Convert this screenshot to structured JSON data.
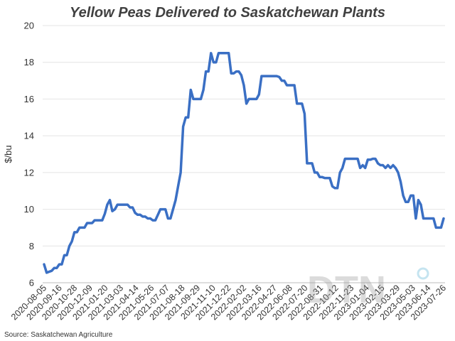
{
  "chart_data": {
    "type": "line",
    "title": "Yellow Peas Delivered to Saskatchewan Plants",
    "ylabel": "$/bu",
    "xlabel": "",
    "ylim": [
      6,
      20
    ],
    "yticks": [
      6,
      8,
      10,
      12,
      14,
      16,
      18,
      20
    ],
    "x_tick_labels": [
      "2020-08-05",
      "2020-09-16",
      "2020-10-28",
      "2020-12-09",
      "2021-01-20",
      "2021-03-03",
      "2021-04-14",
      "2021-05-26",
      "2021-07-07",
      "2021-08-18",
      "2021-09-29",
      "2021-11-10",
      "2021-12-22",
      "2022-02-02",
      "2022-03-16",
      "2022-04-27",
      "2022-06-08",
      "2022-07-20",
      "2022-08-31",
      "2022-10-12",
      "2022-11-23",
      "2023-01-04",
      "2023-02-15",
      "2023-03-29",
      "2023-05-03",
      "2023-06-14",
      "2023-07-26"
    ],
    "grid": "horizontal",
    "color": "#3a6fc4",
    "series": [
      {
        "values": [
          7.0,
          6.55,
          6.6,
          6.65,
          6.8,
          6.8,
          7.0,
          7.0,
          7.5,
          7.5,
          8.0,
          8.25,
          8.75,
          8.75,
          9.0,
          9.0,
          9.0,
          9.25,
          9.25,
          9.25,
          9.4,
          9.4,
          9.4,
          9.4,
          9.75,
          10.25,
          10.5,
          9.9,
          10.0,
          10.25,
          10.25,
          10.25,
          10.25,
          10.25,
          10.1,
          10.1,
          9.8,
          9.7,
          9.7,
          9.6,
          9.6,
          9.5,
          9.5,
          9.4,
          9.4,
          9.7,
          10.0,
          10.0,
          10.0,
          9.5,
          9.5,
          10.0,
          10.5,
          11.25,
          12.0,
          14.5,
          15.0,
          15.0,
          16.5,
          16.0,
          16.0,
          16.0,
          16.0,
          16.5,
          17.5,
          17.5,
          18.5,
          18.0,
          18.0,
          18.5,
          18.5,
          18.5,
          18.5,
          18.5,
          17.4,
          17.4,
          17.5,
          17.5,
          17.3,
          16.75,
          15.75,
          16.0,
          16.0,
          16.0,
          16.0,
          16.25,
          17.25,
          17.25,
          17.25,
          17.25,
          17.25,
          17.25,
          17.25,
          17.2,
          17.0,
          17.0,
          16.75,
          16.75,
          16.75,
          16.75,
          15.75,
          15.75,
          15.75,
          15.2,
          12.5,
          12.5,
          12.5,
          12.0,
          12.0,
          11.75,
          11.75,
          11.7,
          11.7,
          11.7,
          11.25,
          11.15,
          11.15,
          12.0,
          12.25,
          12.75,
          12.75,
          12.75,
          12.75,
          12.75,
          12.75,
          12.25,
          12.4,
          12.25,
          12.7,
          12.7,
          12.75,
          12.75,
          12.5,
          12.4,
          12.4,
          12.25,
          12.4,
          12.25,
          12.4,
          12.25,
          12.0,
          11.5,
          10.75,
          10.4,
          10.4,
          10.75,
          10.75,
          9.5,
          10.5,
          10.25,
          9.5,
          9.5,
          9.5,
          9.5,
          9.5,
          9.0,
          9.0,
          9.0,
          9.5
        ]
      }
    ]
  },
  "source": "Source: Saskatchewan Agriculture",
  "watermark": "DTN"
}
